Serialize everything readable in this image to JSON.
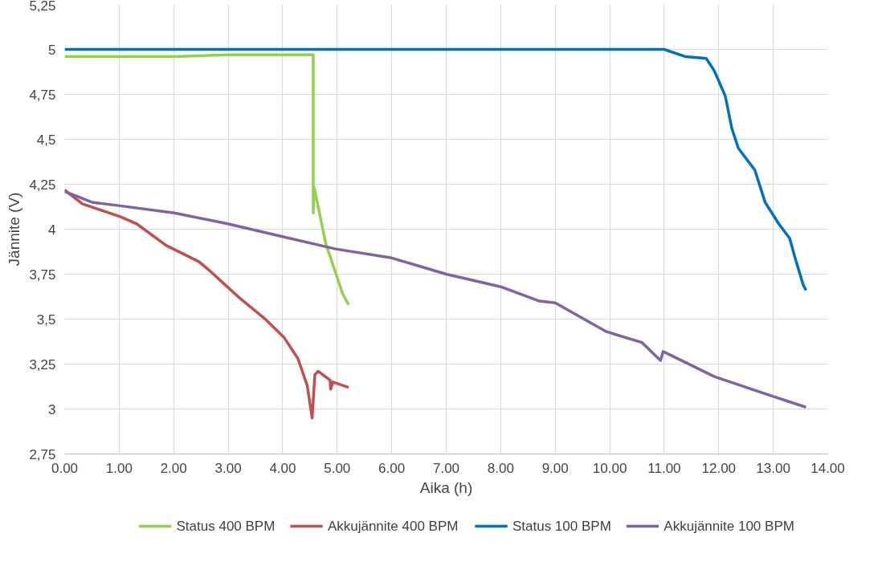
{
  "chart_data": {
    "type": "line",
    "xlabel": "Aika (h)",
    "ylabel": "Jännite (V)",
    "xlim": [
      0,
      14
    ],
    "ylim": [
      2.75,
      5.25
    ],
    "xticks": [
      {
        "value": 0,
        "label": "0.00"
      },
      {
        "value": 1,
        "label": "1.00"
      },
      {
        "value": 2,
        "label": "2.00"
      },
      {
        "value": 3,
        "label": "3.00"
      },
      {
        "value": 4,
        "label": "4.00"
      },
      {
        "value": 5,
        "label": "5.00"
      },
      {
        "value": 6,
        "label": "6.00"
      },
      {
        "value": 7,
        "label": "7.00"
      },
      {
        "value": 8,
        "label": "8.00"
      },
      {
        "value": 9,
        "label": "9.00"
      },
      {
        "value": 10,
        "label": "10.00"
      },
      {
        "value": 11,
        "label": "11.00"
      },
      {
        "value": 12,
        "label": "12.00"
      },
      {
        "value": 13,
        "label": "13.00"
      },
      {
        "value": 14,
        "label": "14.00"
      }
    ],
    "yticks": [
      {
        "value": 2.75,
        "label": "2,75"
      },
      {
        "value": 3,
        "label": "3"
      },
      {
        "value": 3.25,
        "label": "3,25"
      },
      {
        "value": 3.5,
        "label": "3,5"
      },
      {
        "value": 3.75,
        "label": "3,75"
      },
      {
        "value": 4,
        "label": "4"
      },
      {
        "value": 4.25,
        "label": "4,25"
      },
      {
        "value": 4.5,
        "label": "4,5"
      },
      {
        "value": 4.75,
        "label": "4,75"
      },
      {
        "value": 5,
        "label": "5"
      },
      {
        "value": 5.25,
        "label": "5,25"
      }
    ],
    "grid": true,
    "legend": "bottom",
    "marker": "none",
    "line_style": "solid",
    "series": [
      {
        "name": "Status 400 BPM",
        "color": "#92d050",
        "x": [
          0,
          1,
          2,
          3,
          4,
          4.5,
          4.56,
          4.56,
          4.58,
          4.6,
          4.79,
          4.99,
          5.1,
          5.21
        ],
        "values": [
          4.96,
          4.96,
          4.96,
          4.97,
          4.97,
          4.97,
          4.97,
          4.09,
          4.23,
          4.2,
          3.92,
          3.74,
          3.64,
          3.58
        ]
      },
      {
        "name": "Akkujännite 400 BPM",
        "color": "#c0504d",
        "x": [
          0,
          0.03,
          0.33,
          1.02,
          1.32,
          1.86,
          2.46,
          2.62,
          3.2,
          3.68,
          4.02,
          4.28,
          4.45,
          4.54,
          4.59,
          4.65,
          4.87,
          4.88,
          4.92,
          5.21
        ],
        "values": [
          4.22,
          4.21,
          4.14,
          4.07,
          4.03,
          3.91,
          3.82,
          3.78,
          3.62,
          3.5,
          3.4,
          3.28,
          3.13,
          2.95,
          3.19,
          3.21,
          3.16,
          3.11,
          3.15,
          3.12
        ]
      },
      {
        "name": "Status 100 BPM",
        "color": "#0070c0",
        "x": [
          0,
          11,
          11.38,
          11.77,
          11.92,
          12.12,
          12.24,
          12.36,
          12.66,
          12.85,
          13.1,
          13.3,
          13.4,
          13.55,
          13.6
        ],
        "values": [
          5,
          5,
          4.96,
          4.95,
          4.88,
          4.74,
          4.56,
          4.45,
          4.33,
          4.15,
          4.03,
          3.95,
          3.84,
          3.69,
          3.66
        ]
      },
      {
        "name": "Akkujännite 100 BPM",
        "color": "#8064a2",
        "x": [
          0,
          0.5,
          1.02,
          2.01,
          2.99,
          3.98,
          4.97,
          6,
          7,
          8,
          8.71,
          9,
          9.94,
          10.59,
          10.93,
          10.98,
          11.92,
          12.9,
          13.6
        ],
        "values": [
          4.21,
          4.15,
          4.13,
          4.09,
          4.03,
          3.96,
          3.89,
          3.84,
          3.75,
          3.68,
          3.6,
          3.59,
          3.43,
          3.37,
          3.27,
          3.32,
          3.18,
          3.08,
          3.01
        ]
      }
    ]
  }
}
